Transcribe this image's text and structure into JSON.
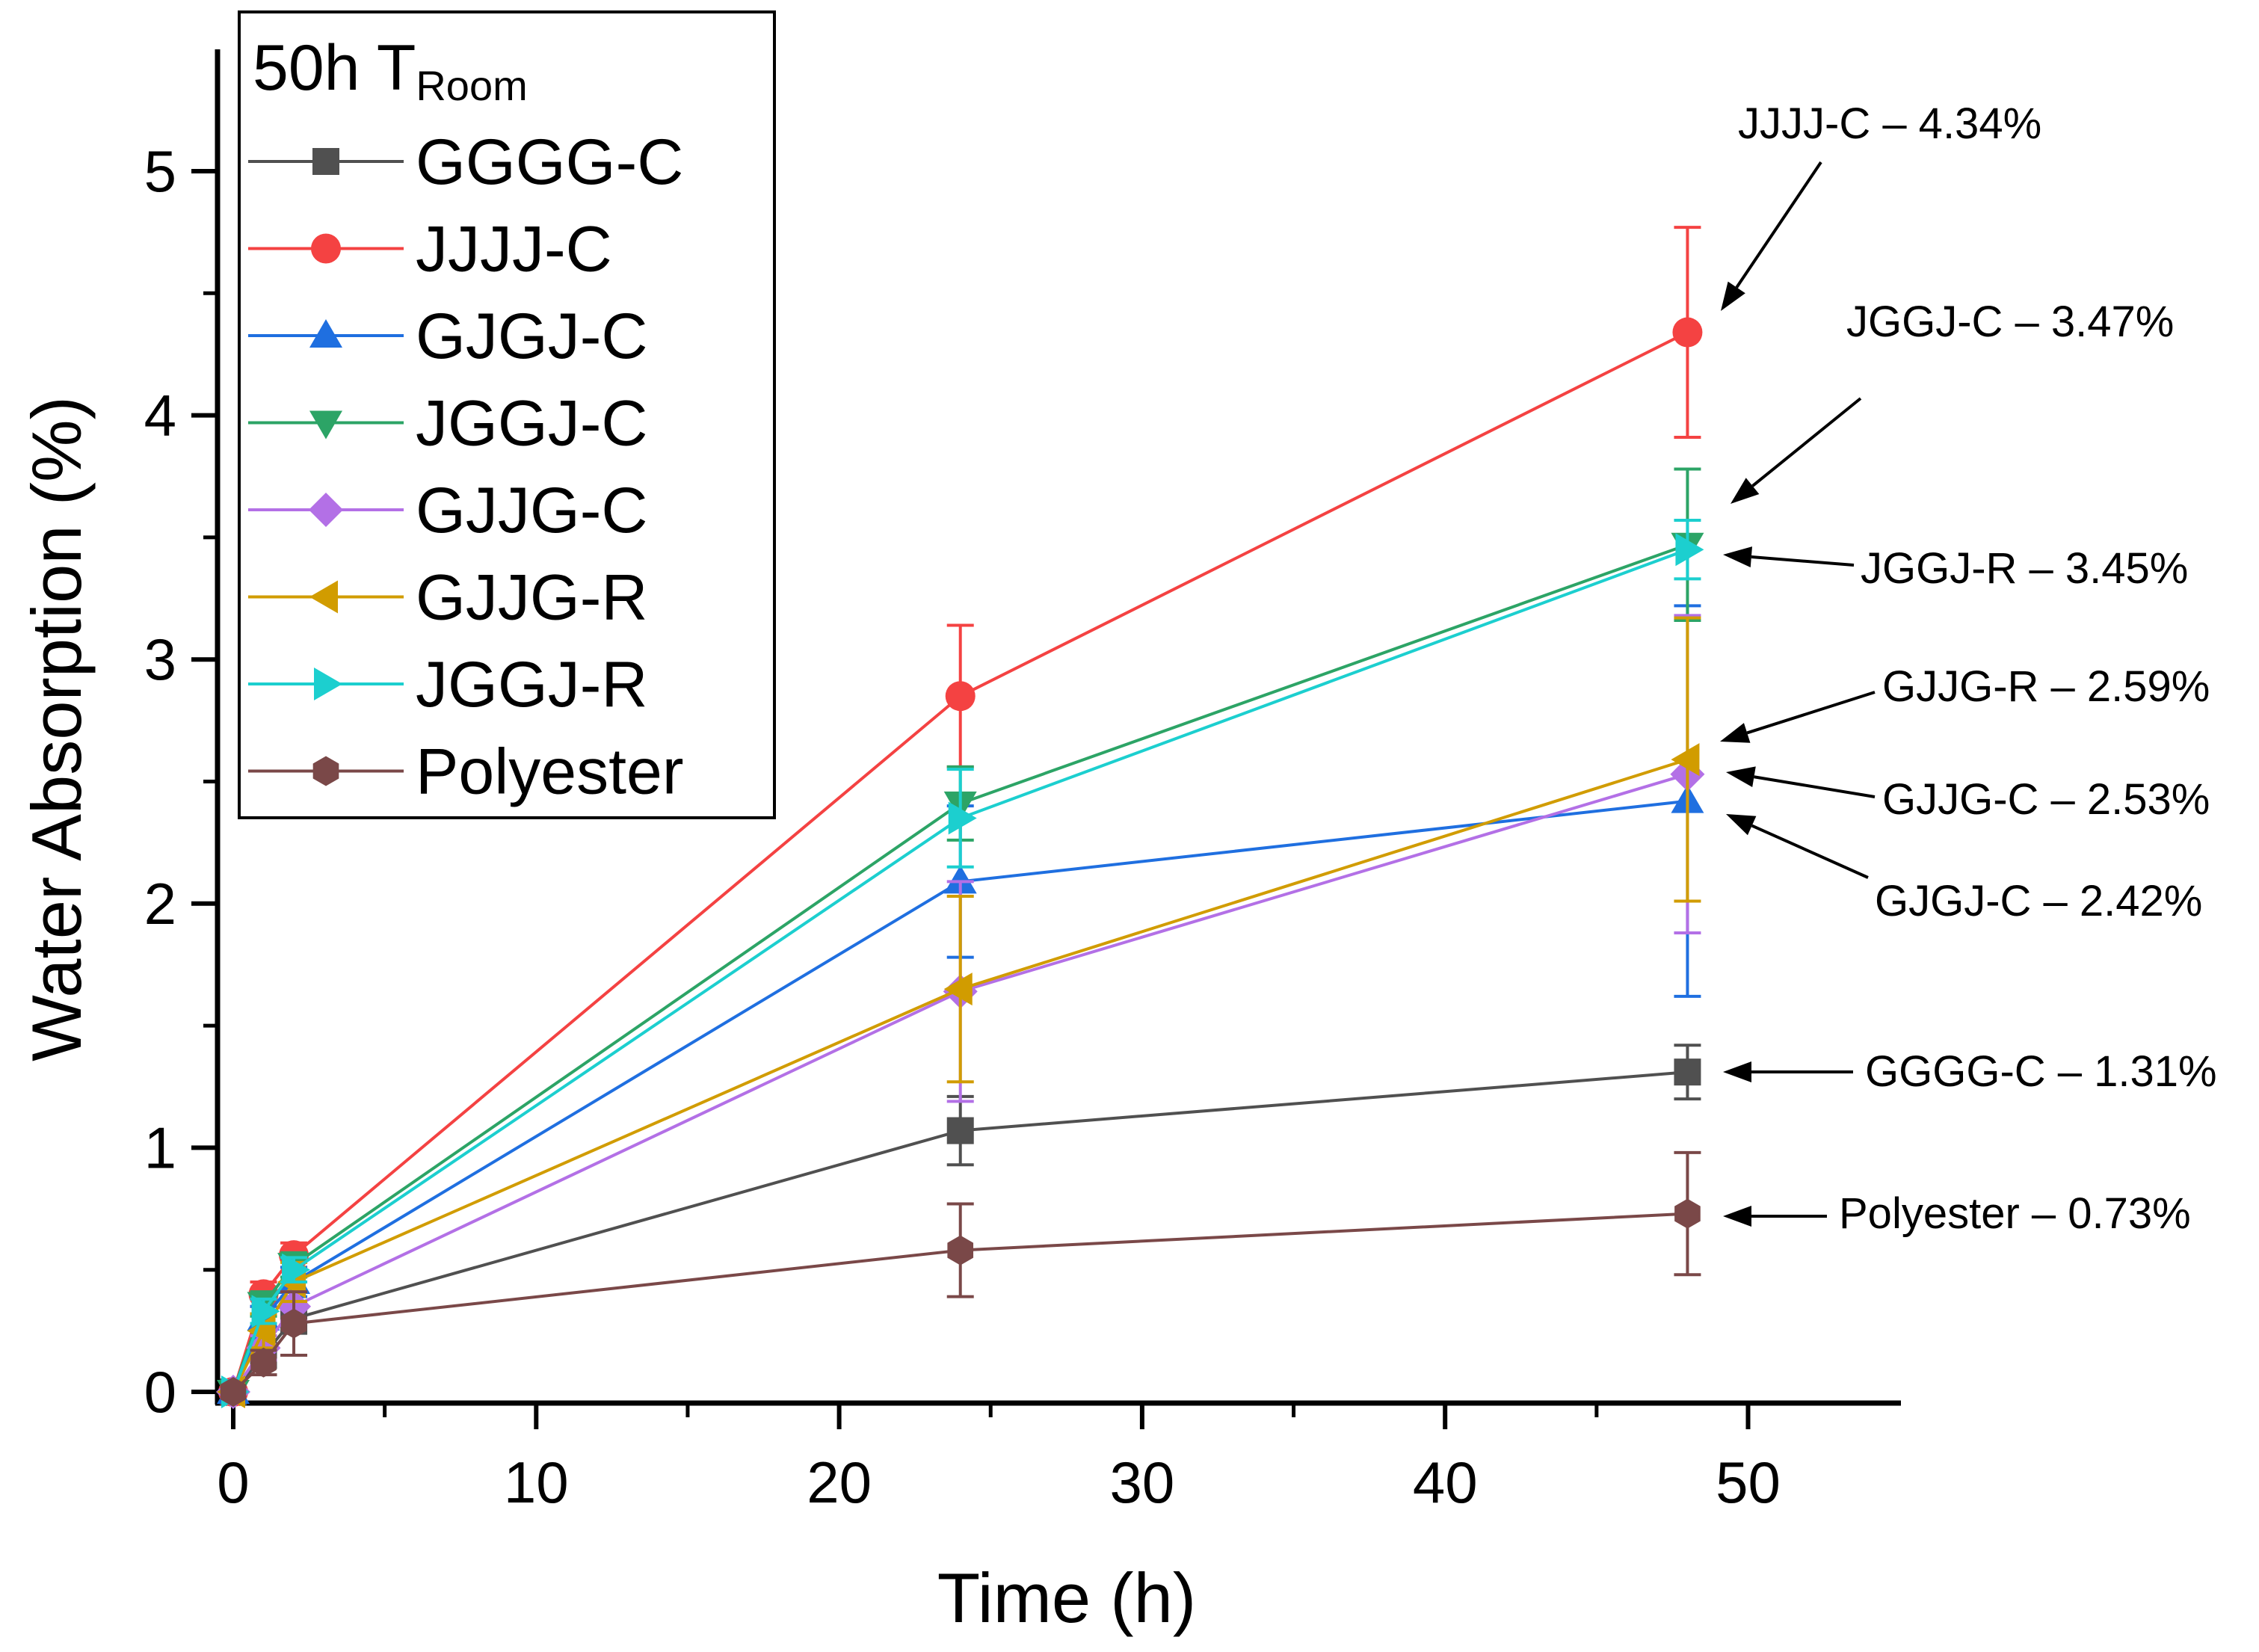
{
  "chart_data": {
    "type": "line",
    "title": "",
    "xlabel": "Time (h)",
    "ylabel": "Water Absorption (%)",
    "xlim": [
      -1,
      55
    ],
    "ylim": [
      -0.05,
      5.5
    ],
    "xticks": [
      "0",
      "10",
      "20",
      "30",
      "40",
      "50"
    ],
    "yticks": [
      "0",
      "1",
      "2",
      "3",
      "4",
      "5"
    ],
    "legend_title": "50h T",
    "legend_title_sub": "Room",
    "legend_position": "top-left",
    "x": [
      0,
      1,
      2,
      24,
      48
    ],
    "series": [
      {
        "name": "GGGG-C",
        "color": "#505050",
        "marker": "square",
        "values": [
          0,
          0.15,
          0.3,
          1.07,
          1.31
        ],
        "errors": [
          0,
          0.05,
          0.06,
          0.14,
          0.11
        ]
      },
      {
        "name": "JJJJ-C",
        "color": "#f44242",
        "marker": "circle",
        "values": [
          0,
          0.4,
          0.56,
          2.85,
          4.34
        ],
        "errors": [
          0,
          0.05,
          0.05,
          0.29,
          0.43
        ]
      },
      {
        "name": "GJGJ-C",
        "color": "#1f6fe0",
        "marker": "triangle-up",
        "values": [
          0,
          0.3,
          0.45,
          2.09,
          2.42
        ],
        "errors": [
          0,
          0.05,
          0.06,
          0.31,
          0.8
        ]
      },
      {
        "name": "JGGJ-C",
        "color": "#2ca466",
        "marker": "triangle-down",
        "values": [
          0,
          0.36,
          0.52,
          2.41,
          3.47
        ],
        "errors": [
          0,
          0.05,
          0.05,
          0.15,
          0.31
        ]
      },
      {
        "name": "GJJG-C",
        "color": "#b370e6",
        "marker": "diamond",
        "values": [
          0,
          0.18,
          0.35,
          1.64,
          2.53
        ],
        "errors": [
          0,
          0.05,
          0.06,
          0.45,
          0.65
        ]
      },
      {
        "name": "GJJG-R",
        "color": "#d19c00",
        "marker": "triangle-left",
        "values": [
          0,
          0.25,
          0.45,
          1.65,
          2.59
        ],
        "errors": [
          0,
          0.07,
          0.08,
          0.38,
          0.58
        ]
      },
      {
        "name": "JGGJ-R",
        "color": "#1ccfcf",
        "marker": "triangle-right",
        "values": [
          0,
          0.33,
          0.5,
          2.35,
          3.45
        ],
        "errors": [
          0,
          0.05,
          0.05,
          0.2,
          0.12
        ]
      },
      {
        "name": "Polyester",
        "color": "#7a4848",
        "marker": "hexagon",
        "values": [
          0,
          0.12,
          0.28,
          0.58,
          0.73
        ],
        "errors": [
          0,
          0.05,
          0.13,
          0.19,
          0.25
        ]
      }
    ],
    "annotations": [
      "JJJJ-C – 4.34%",
      "JGGJ-C – 3.47%",
      "JGGJ-R – 3.45%",
      "GJJG-R – 2.59%",
      "GJJG-C – 2.53%",
      "GJGJ-C – 2.42%",
      "GGGG-C – 1.31%",
      "Polyester – 0.73%"
    ]
  }
}
